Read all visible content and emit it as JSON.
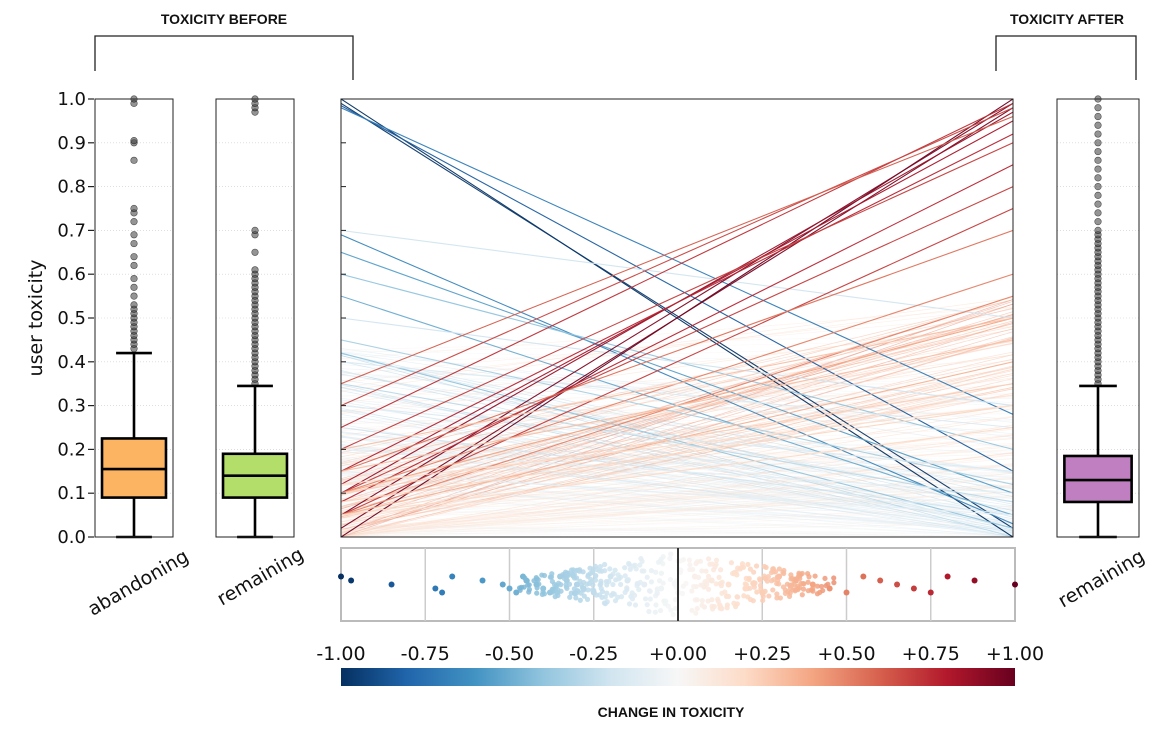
{
  "header_before": "TOXICITY BEFORE",
  "header_after": "TOXICITY AFTER",
  "ylabel": "user toxicity",
  "colorbar_label": "CHANGE IN TOXICITY",
  "colormap_stops": [
    "#053061",
    "#2166ac",
    "#4393c3",
    "#92c5de",
    "#d1e5f0",
    "#f7f7f7",
    "#fddbc7",
    "#f4a582",
    "#d6604d",
    "#b2182b",
    "#67001f"
  ],
  "box_colors": {
    "abandoning": "#fdb462",
    "remaining_before": "#b3de69",
    "remaining_after": "#c07fc0"
  },
  "chart_data": [
    {
      "type": "box",
      "panel": "before-abandoning",
      "category": "abandoning",
      "ylim": [
        0.0,
        1.0
      ],
      "yticks": [
        "0.0",
        "0.1",
        "0.2",
        "0.3",
        "0.4",
        "0.5",
        "0.6",
        "0.7",
        "0.8",
        "0.9",
        "1.0"
      ],
      "whisker_low": 0.0,
      "q1": 0.09,
      "median": 0.155,
      "q3": 0.225,
      "whisker_high": 0.42,
      "outliers": [
        0.43,
        0.44,
        0.45,
        0.46,
        0.47,
        0.48,
        0.49,
        0.5,
        0.51,
        0.52,
        0.53,
        0.55,
        0.57,
        0.59,
        0.62,
        0.64,
        0.67,
        0.69,
        0.72,
        0.74,
        0.75,
        0.86,
        0.9,
        0.905,
        0.99,
        1.0
      ]
    },
    {
      "type": "box",
      "panel": "before-remaining",
      "category": "remaining",
      "ylim": [
        0.0,
        1.0
      ],
      "whisker_low": 0.0,
      "q1": 0.09,
      "median": 0.14,
      "q3": 0.19,
      "whisker_high": 0.345,
      "outliers": [
        0.35,
        0.36,
        0.37,
        0.38,
        0.39,
        0.4,
        0.41,
        0.42,
        0.43,
        0.44,
        0.45,
        0.46,
        0.47,
        0.48,
        0.49,
        0.5,
        0.51,
        0.52,
        0.53,
        0.54,
        0.55,
        0.56,
        0.57,
        0.58,
        0.59,
        0.6,
        0.61,
        0.65,
        0.69,
        0.7,
        0.97,
        0.98,
        0.99,
        1.0
      ]
    },
    {
      "type": "line",
      "panel": "slopegraph",
      "description_x": "before vs after",
      "ylim": [
        0.0,
        1.0
      ],
      "series": [
        {
          "before": 1.0,
          "after": 0.0
        },
        {
          "before": 0.99,
          "after": 0.02
        },
        {
          "before": 0.985,
          "after": 0.15
        },
        {
          "before": 0.98,
          "after": 0.28
        },
        {
          "before": 0.7,
          "after": 0.5
        },
        {
          "before": 0.69,
          "after": 0.03
        },
        {
          "before": 0.65,
          "after": 0.1
        },
        {
          "before": 0.6,
          "after": 0.2
        },
        {
          "before": 0.55,
          "after": 0.05
        },
        {
          "before": 0.5,
          "after": 0.3
        },
        {
          "before": 0.45,
          "after": 0.12
        },
        {
          "before": 0.42,
          "after": 0.02
        },
        {
          "before": 0.4,
          "after": 0.25
        },
        {
          "before": 0.35,
          "after": 0.08
        },
        {
          "before": 0.3,
          "after": 0.15
        },
        {
          "before": 0.25,
          "after": 0.05
        },
        {
          "before": 0.2,
          "after": 0.1
        },
        {
          "before": 0.15,
          "after": 0.05
        },
        {
          "before": 0.0,
          "after": 1.0
        },
        {
          "before": 0.02,
          "after": 0.98
        },
        {
          "before": 0.05,
          "after": 0.99
        },
        {
          "before": 0.1,
          "after": 0.97
        },
        {
          "before": 0.12,
          "after": 0.95
        },
        {
          "before": 0.15,
          "after": 0.92
        },
        {
          "before": 0.2,
          "after": 0.9
        },
        {
          "before": 0.25,
          "after": 0.99
        },
        {
          "before": 0.3,
          "after": 0.98
        },
        {
          "before": 0.35,
          "after": 0.96
        },
        {
          "before": 0.08,
          "after": 0.85
        },
        {
          "before": 0.1,
          "after": 0.8
        },
        {
          "before": 0.05,
          "after": 0.75
        },
        {
          "before": 0.15,
          "after": 0.7
        },
        {
          "before": 0.1,
          "after": 0.6
        },
        {
          "before": 0.05,
          "after": 0.55
        },
        {
          "before": 0.1,
          "after": 0.5
        },
        {
          "before": 0.15,
          "after": 0.45
        },
        {
          "before": 0.2,
          "after": 0.5
        },
        {
          "before": 0.05,
          "after": 0.4
        },
        {
          "before": 0.1,
          "after": 0.35
        },
        {
          "before": 0.08,
          "after": 0.3
        },
        {
          "before": 0.12,
          "after": 0.3
        },
        {
          "before": 0.05,
          "after": 0.25
        }
      ]
    },
    {
      "type": "scatter",
      "panel": "change-swarm",
      "xlim": [
        -1.0,
        1.0
      ],
      "xticks": [
        "-1.00",
        "-0.75",
        "-0.50",
        "-0.25",
        "+0.00",
        "+0.25",
        "+0.50",
        "+0.75",
        "+1.00"
      ],
      "x": [
        -1.0,
        -0.97,
        -0.85,
        -0.72,
        -0.7,
        -0.67,
        -0.58,
        -0.52,
        -0.5,
        -0.48,
        -0.46,
        -0.45,
        -0.42,
        -0.4,
        -0.38,
        -0.35,
        -0.33,
        -0.3,
        -0.28,
        -0.25,
        -0.2,
        -0.15,
        -0.1,
        -0.05,
        0.0,
        0.05,
        0.1,
        0.15,
        0.2,
        0.25,
        0.3,
        0.35,
        0.4,
        0.45,
        0.5,
        0.55,
        0.6,
        0.65,
        0.7,
        0.75,
        0.8,
        0.88,
        1.0
      ]
    },
    {
      "type": "box",
      "panel": "after-remaining",
      "category": "remaining",
      "ylim": [
        0.0,
        1.0
      ],
      "whisker_low": 0.0,
      "q1": 0.08,
      "median": 0.13,
      "q3": 0.185,
      "whisker_high": 0.345,
      "outliers": [
        0.35,
        0.36,
        0.37,
        0.38,
        0.39,
        0.4,
        0.41,
        0.42,
        0.43,
        0.44,
        0.45,
        0.46,
        0.47,
        0.48,
        0.49,
        0.5,
        0.51,
        0.52,
        0.53,
        0.54,
        0.55,
        0.56,
        0.57,
        0.58,
        0.59,
        0.6,
        0.61,
        0.62,
        0.63,
        0.64,
        0.65,
        0.66,
        0.67,
        0.68,
        0.69,
        0.7,
        0.72,
        0.74,
        0.76,
        0.78,
        0.8,
        0.82,
        0.84,
        0.86,
        0.88,
        0.9,
        0.92,
        0.94,
        0.96,
        0.98,
        1.0
      ]
    }
  ]
}
